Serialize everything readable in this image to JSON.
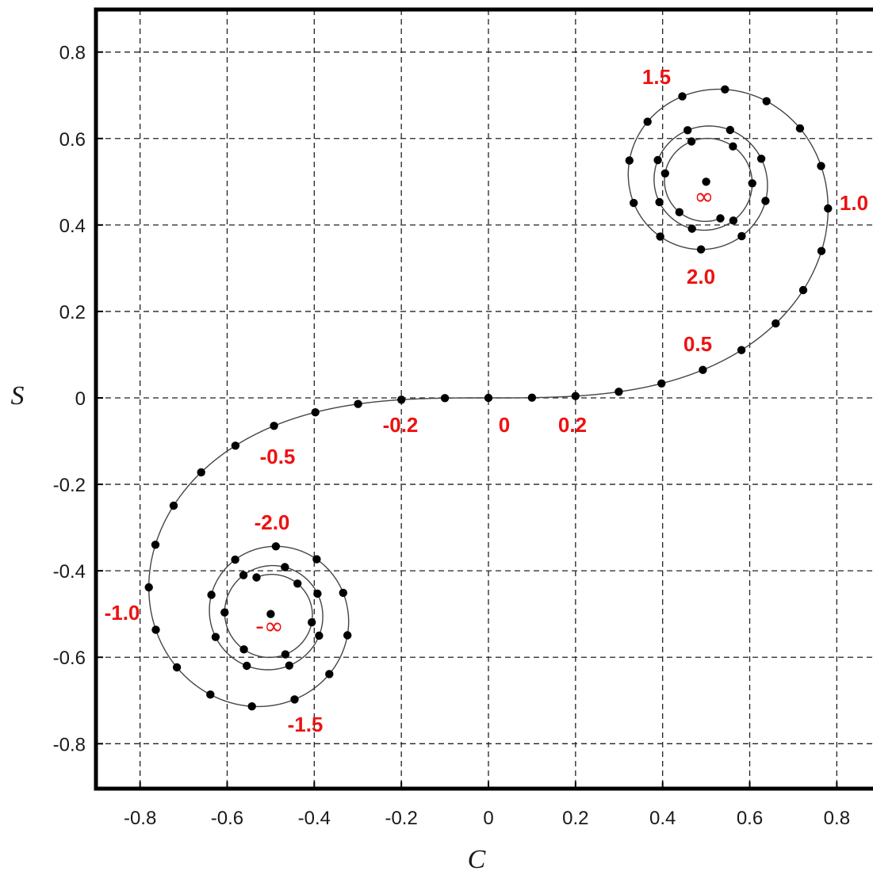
{
  "chart_data": {
    "type": "line",
    "title": "",
    "xlabel": "C",
    "ylabel": "S",
    "xlim": [
      -0.9,
      0.9
    ],
    "ylim": [
      -0.9,
      0.9
    ],
    "x_ticks": [
      -0.8,
      -0.6,
      -0.4,
      -0.2,
      0,
      0.2,
      0.4,
      0.6,
      0.8
    ],
    "x_tick_labels": [
      "-0.8",
      "-0.6",
      "-0.4",
      "-0.2",
      "0",
      "0.2",
      "0.4",
      "0.6",
      "0.8"
    ],
    "y_ticks": [
      0.8,
      0.6,
      0.4,
      0.2,
      0,
      -0.2,
      -0.4,
      -0.6,
      -0.8
    ],
    "y_tick_labels": [
      "0.8",
      "0.6",
      "0.4",
      "0.2",
      "0",
      "-0.2",
      "-0.4",
      "-0.6",
      "-0.8"
    ],
    "grid": true,
    "series": [
      {
        "parameter": "t",
        "t_range": [
          -3.5,
          3.5
        ],
        "marker_step": 0.1,
        "x": "C(t) = integral from 0 to t of cos(pi*u^2/2) du",
        "y": "S(t) = integral from 0 to t of sin(pi*u^2/2) du",
        "limit_points": [
          [
            0.5,
            0.5
          ],
          [
            -0.5,
            -0.5
          ]
        ]
      }
    ],
    "annotations": [
      {
        "text": "1.5",
        "t": 1.5
      },
      {
        "text": "1.0",
        "t": 1.0
      },
      {
        "text": "2.0",
        "t": 2.0
      },
      {
        "text": "0.5",
        "t": 0.5
      },
      {
        "text": "0.2",
        "t": 0.2
      },
      {
        "text": "0",
        "t": 0
      },
      {
        "text": "-0.2",
        "t": -0.2
      },
      {
        "text": "-0.5",
        "t": -0.5
      },
      {
        "text": "-2.0",
        "t": -2.0
      },
      {
        "text": "-1.0",
        "t": -1.0
      },
      {
        "text": "-1.5",
        "t": -1.5
      },
      {
        "text": "∞",
        "t": "inf"
      },
      {
        "text": "-∞",
        "t": "-inf"
      }
    ]
  }
}
